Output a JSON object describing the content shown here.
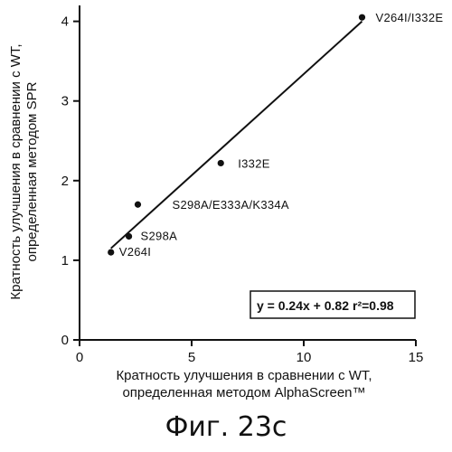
{
  "chart_data": {
    "type": "scatter",
    "title": "",
    "xlabel_lines": [
      "Кратность улучшения в сравнении с WT,",
      "определенная методом AlphaScreen™"
    ],
    "ylabel_lines": [
      "Кратность улучшения в сравнении с WT,",
      "определенная методом SPR"
    ],
    "xlim": [
      0,
      15
    ],
    "ylim": [
      0,
      4.2
    ],
    "x_ticks": [
      0,
      5,
      10,
      15
    ],
    "y_ticks": [
      0,
      1,
      2,
      3,
      4
    ],
    "grid": false,
    "points": [
      {
        "label": "V264I",
        "x": 1.4,
        "y": 1.1
      },
      {
        "label": "S298A",
        "x": 2.2,
        "y": 1.3
      },
      {
        "label": "S298A/E333A/K334A",
        "x": 2.6,
        "y": 1.7
      },
      {
        "label": "I332E",
        "x": 6.3,
        "y": 2.22
      },
      {
        "label": "V264I/I332E",
        "x": 12.6,
        "y": 4.05
      }
    ],
    "fit_line": {
      "x": [
        1.4,
        12.6
      ],
      "y": [
        1.15,
        4.0
      ]
    },
    "equation": "y = 0.24x + 0.82",
    "r2": "r²=0.98"
  },
  "caption": "Фиг. 23с"
}
